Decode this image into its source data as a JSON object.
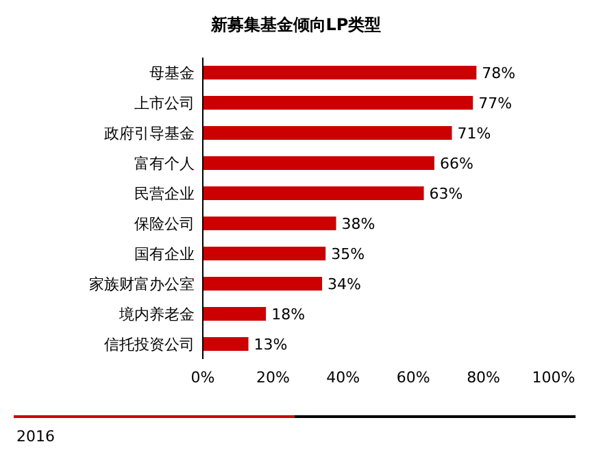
{
  "chart_data": {
    "type": "bar",
    "orientation": "horizontal",
    "title": "新募集基金倾向LP类型",
    "categories": [
      "母基金",
      "上市公司",
      "政府引导基金",
      "富有个人",
      "民营企业",
      "保险公司",
      "国有企业",
      "家族财富办公室",
      "境内养老金",
      "信托投资公司"
    ],
    "values": [
      78,
      77,
      71,
      66,
      63,
      38,
      35,
      34,
      18,
      13
    ],
    "value_labels": [
      "78%",
      "77%",
      "71%",
      "66%",
      "63%",
      "38%",
      "35%",
      "34%",
      "18%",
      "13%"
    ],
    "color": "#cc0000",
    "xlim": [
      0,
      100
    ],
    "xticks": [
      {
        "value": 0,
        "label": "0%"
      },
      {
        "value": 20,
        "label": "20%"
      },
      {
        "value": 40,
        "label": "40%"
      },
      {
        "value": 60,
        "label": "60%"
      },
      {
        "value": 80,
        "label": "80%"
      },
      {
        "value": 100,
        "label": "100%"
      }
    ],
    "annotations": [
      "2016"
    ]
  }
}
